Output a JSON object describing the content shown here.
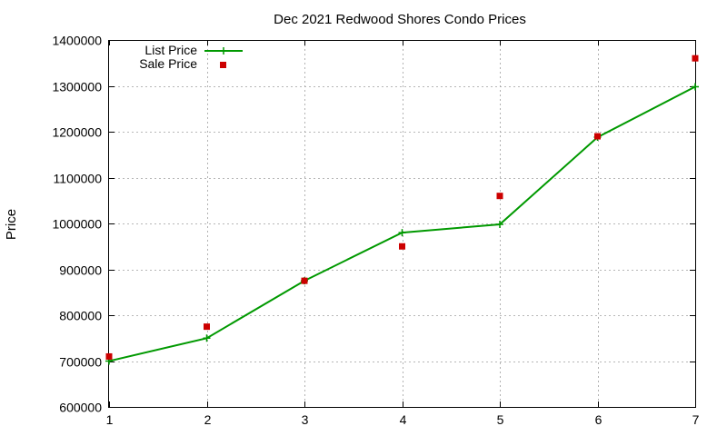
{
  "chart_data": {
    "type": "line",
    "title": "Dec 2021 Redwood Shores Condo Prices",
    "xlabel": "",
    "ylabel": "Price",
    "xlim": [
      1,
      7
    ],
    "ylim": [
      600000,
      1400000
    ],
    "x_ticks": [
      1,
      2,
      3,
      4,
      5,
      6,
      7
    ],
    "y_ticks": [
      600000,
      700000,
      800000,
      900000,
      1000000,
      1100000,
      1200000,
      1300000,
      1400000
    ],
    "grid": true,
    "legend_position": "top-left",
    "series": [
      {
        "name": "List Price",
        "style": "line-with-plus-markers",
        "color": "#009900",
        "x": [
          1,
          2,
          3,
          4,
          5,
          6,
          7
        ],
        "values": [
          700000,
          750000,
          875000,
          980000,
          998000,
          1188000,
          1298000
        ]
      },
      {
        "name": "Sale Price",
        "style": "square-markers",
        "color": "#cc0000",
        "x": [
          1,
          2,
          3,
          4,
          5,
          6,
          7
        ],
        "values": [
          710000,
          775000,
          875000,
          950000,
          1060000,
          1190000,
          1360000
        ]
      }
    ]
  }
}
